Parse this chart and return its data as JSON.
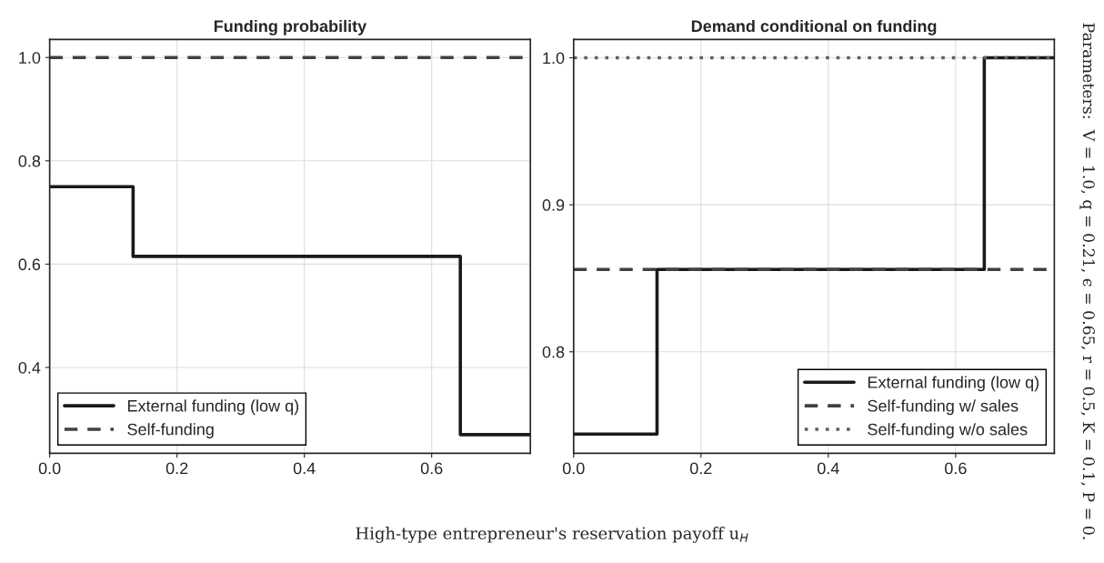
{
  "chart_data": [
    {
      "type": "step",
      "title": "Funding probability",
      "xlabel": "High-type entrepreneur's reservation payoff u$_{H}$",
      "xlim": [
        0,
        0.755
      ],
      "xticks": [
        {
          "value": 0,
          "label": "0.0"
        },
        0.2,
        0.4,
        0.6
      ],
      "ylim": [
        0.234,
        1.035
      ],
      "yticks": [
        0.4,
        0.6,
        0.8,
        {
          "value": 1,
          "label": "1.0"
        }
      ],
      "grid": true,
      "legend": "bottom left",
      "series": [
        {
          "name": "External funding (low q)",
          "color": "#1a1a1a",
          "line_style": "solid",
          "x": [
            0,
            0.131,
            0.645,
            0.755
          ],
          "values": [
            0.75,
            0.615,
            0.27,
            0.27
          ]
        },
        {
          "name": "Self-funding",
          "type": "line",
          "color": "#3b434b",
          "line_style": "dashed",
          "x": [
            0,
            0.755
          ],
          "values": [
            1,
            1
          ]
        }
      ]
    },
    {
      "type": "step",
      "title": "Demand conditional on funding",
      "xlim": [
        0,
        0.755
      ],
      "xticks": [
        {
          "value": 0,
          "label": "0.0"
        },
        0.2,
        0.4,
        0.6
      ],
      "ylim": [
        0.731,
        1.0125
      ],
      "yticks": [
        0.8,
        0.9,
        {
          "value": 1,
          "label": "1.0"
        }
      ],
      "grid": true,
      "legend": "bottom right",
      "annotations": [
        "Parameters:  V = 1.0, q = 0.21, ϵ = 0.65, r = 0.5, K = 0.1, P = 0."
      ],
      "series": [
        {
          "name": "External funding (low q)",
          "color": "#1a1a1a",
          "line_style": "solid",
          "x": [
            0,
            0.131,
            0.645,
            0.755
          ],
          "values": [
            0.744,
            0.856,
            1,
            1
          ]
        },
        {
          "name": "Self-funding w/ sales",
          "type": "line",
          "color": "#3b434b",
          "line_style": "dashed",
          "x": [
            0,
            0.755
          ],
          "values": [
            0.856,
            0.856
          ]
        },
        {
          "name": "Self-funding w/o sales",
          "type": "line",
          "color": "#59626a",
          "line_style": "dotted",
          "x": [
            0,
            0.755
          ],
          "values": [
            1,
            1
          ]
        }
      ]
    }
  ]
}
